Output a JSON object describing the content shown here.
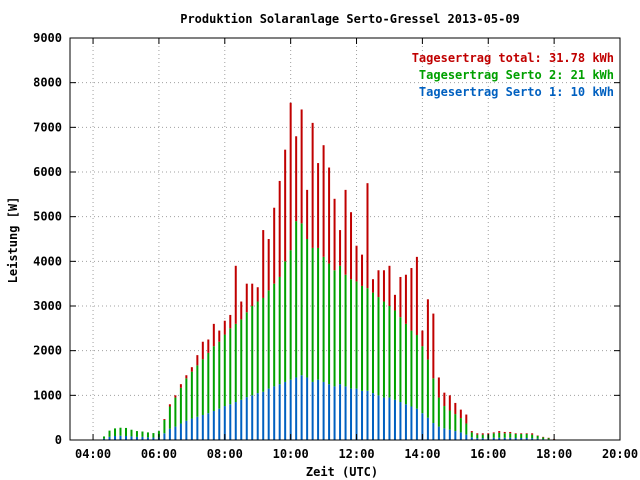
{
  "chart_data": {
    "type": "bar",
    "stacked": true,
    "title": "Produktion Solaranlage Serto-Gressel 2013-05-09",
    "xlabel": "Zeit (UTC)",
    "ylabel": "Leistung [W]",
    "xlim": [
      3.3,
      20.0
    ],
    "ylim": [
      0,
      9000
    ],
    "x_ticks": [
      {
        "value": 4,
        "label": "04:00"
      },
      {
        "value": 6,
        "label": "06:00"
      },
      {
        "value": 8,
        "label": "08:00"
      },
      {
        "value": 10,
        "label": "10:00"
      },
      {
        "value": 12,
        "label": "12:00"
      },
      {
        "value": 14,
        "label": "14:00"
      },
      {
        "value": 16,
        "label": "16:00"
      },
      {
        "value": 18,
        "label": "18:00"
      },
      {
        "value": 20,
        "label": "20:00"
      }
    ],
    "y_ticks": [
      {
        "value": 0,
        "label": "0"
      },
      {
        "value": 1000,
        "label": "1000"
      },
      {
        "value": 2000,
        "label": "2000"
      },
      {
        "value": 3000,
        "label": "3000"
      },
      {
        "value": 4000,
        "label": "4000"
      },
      {
        "value": 5000,
        "label": "5000"
      },
      {
        "value": 6000,
        "label": "6000"
      },
      {
        "value": 7000,
        "label": "7000"
      },
      {
        "value": 8000,
        "label": "8000"
      },
      {
        "value": 9000,
        "label": "9000"
      }
    ],
    "grid": true,
    "legend_position": "top-right",
    "legend": [
      {
        "text": "Tagesertrag total: 31.78 kWh",
        "color": "#c00000"
      },
      {
        "text": "Tagesertrag Serto 2: 21 kWh",
        "color": "#00a000"
      },
      {
        "text": "Tagesertrag Serto 1: 10 kWh",
        "color": "#0060c0"
      }
    ],
    "colors": {
      "total": "#c00000",
      "serto2": "#00a000",
      "serto1": "#0060c0"
    },
    "x": [
      4.333,
      4.5,
      4.667,
      4.833,
      5.0,
      5.167,
      5.333,
      5.5,
      5.667,
      5.833,
      6.0,
      6.167,
      6.333,
      6.5,
      6.667,
      6.833,
      7.0,
      7.167,
      7.333,
      7.5,
      7.667,
      7.833,
      8.0,
      8.167,
      8.333,
      8.5,
      8.667,
      8.833,
      9.0,
      9.167,
      9.333,
      9.5,
      9.667,
      9.833,
      10.0,
      10.167,
      10.333,
      10.5,
      10.667,
      10.833,
      11.0,
      11.167,
      11.333,
      11.5,
      11.667,
      11.833,
      12.0,
      12.167,
      12.333,
      12.5,
      12.667,
      12.833,
      13.0,
      13.167,
      13.333,
      13.5,
      13.667,
      13.833,
      14.0,
      14.167,
      14.333,
      14.5,
      14.667,
      14.833,
      15.0,
      15.167,
      15.333,
      15.5,
      15.667,
      15.833,
      16.0,
      16.167,
      16.333,
      16.5,
      16.667,
      16.833,
      17.0,
      17.167,
      17.333,
      17.5,
      17.667,
      17.833,
      18.0
    ],
    "series": [
      {
        "key": "serto1",
        "name": "Tagesertrag Serto 1: 10 kWh",
        "values": [
          30,
          70,
          90,
          95,
          90,
          80,
          70,
          70,
          60,
          55,
          60,
          150,
          250,
          300,
          370,
          430,
          480,
          520,
          560,
          600,
          650,
          700,
          760,
          800,
          850,
          900,
          960,
          1000,
          1050,
          1080,
          1150,
          1200,
          1250,
          1300,
          1350,
          1400,
          1450,
          1400,
          1300,
          1350,
          1300,
          1250,
          1200,
          1250,
          1200,
          1150,
          1150,
          1100,
          1100,
          1050,
          1000,
          950,
          950,
          900,
          850,
          800,
          750,
          700,
          600,
          500,
          380,
          300,
          260,
          230,
          200,
          170,
          120,
          60,
          40,
          40,
          40,
          50,
          50,
          50,
          50,
          45,
          45,
          45,
          40,
          30,
          20,
          15,
          5
        ]
      },
      {
        "key": "serto2",
        "name": "Tagesertrag Serto 2: 21 kWh",
        "values": [
          50,
          140,
          170,
          180,
          180,
          150,
          130,
          120,
          110,
          100,
          140,
          300,
          500,
          650,
          800,
          950,
          1050,
          1150,
          1250,
          1350,
          1450,
          1500,
          1600,
          1700,
          1750,
          1800,
          1900,
          2000,
          2050,
          2100,
          2200,
          2300,
          2400,
          2700,
          2900,
          3500,
          3400,
          3100,
          3000,
          2950,
          2800,
          2700,
          2600,
          2650,
          2500,
          2450,
          2400,
          2350,
          2300,
          2250,
          2200,
          2150,
          2050,
          2000,
          1900,
          1800,
          1700,
          1650,
          1500,
          1300,
          1000,
          650,
          500,
          430,
          380,
          320,
          250,
          110,
          80,
          80,
          80,
          100,
          110,
          100,
          100,
          90,
          90,
          90,
          80,
          60,
          40,
          30,
          10
        ]
      },
      {
        "key": "extra",
        "name": "",
        "values": [
          0,
          0,
          0,
          0,
          0,
          0,
          0,
          0,
          0,
          0,
          0,
          20,
          50,
          50,
          80,
          70,
          100,
          230,
          390,
          300,
          500,
          250,
          310,
          300,
          1300,
          400,
          640,
          500,
          320,
          1520,
          1150,
          1700,
          2150,
          2500,
          3300,
          1900,
          2550,
          1100,
          2800,
          1900,
          2500,
          2150,
          1600,
          800,
          1900,
          1500,
          800,
          700,
          2350,
          300,
          600,
          700,
          900,
          350,
          900,
          1100,
          1400,
          1750,
          350,
          1350,
          1450,
          450,
          300,
          340,
          250,
          190,
          200,
          30,
          30,
          30,
          30,
          20,
          40,
          30,
          30,
          15,
          15,
          15,
          30,
          10,
          10,
          5,
          5
        ]
      }
    ]
  }
}
